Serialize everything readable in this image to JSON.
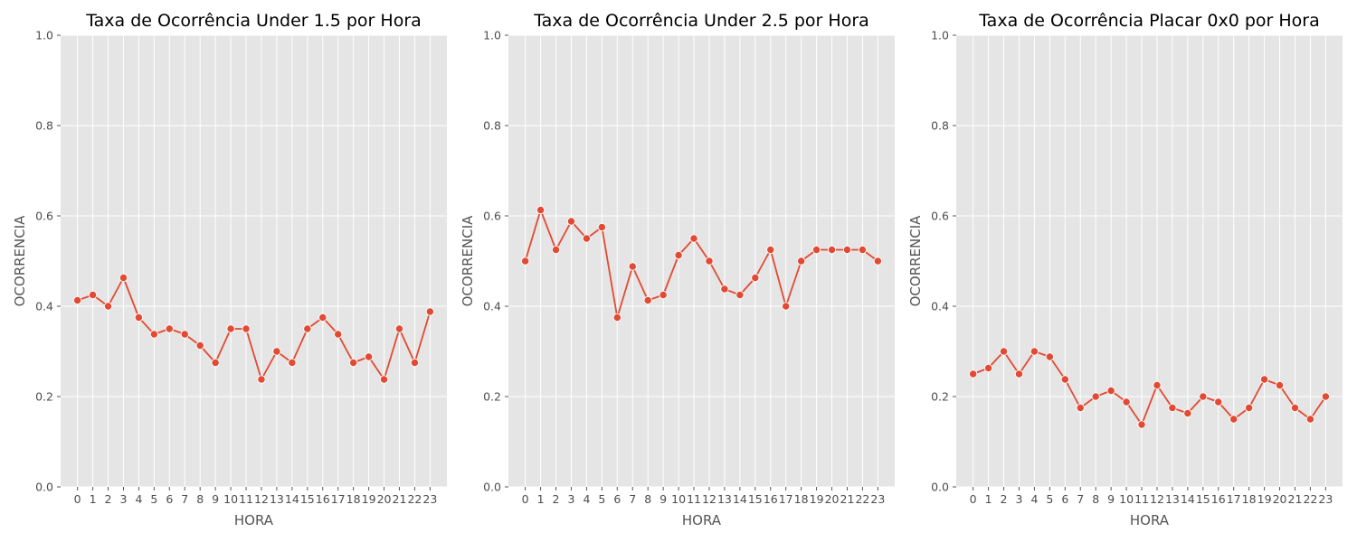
{
  "chart_data": [
    {
      "type": "line",
      "title": "Taxa de Ocorrência Under 1.5 por Hora",
      "xlabel": "HORA",
      "ylabel": "OCORRENCIA",
      "ylim": [
        0,
        1
      ],
      "yticks": [
        "0.0",
        "0.2",
        "0.4",
        "0.6",
        "0.8",
        "1.0"
      ],
      "grid": true,
      "categories": [
        "0",
        "1",
        "2",
        "3",
        "4",
        "5",
        "6",
        "7",
        "8",
        "9",
        "10",
        "11",
        "12",
        "13",
        "14",
        "15",
        "16",
        "17",
        "18",
        "19",
        "20",
        "21",
        "22",
        "23"
      ],
      "series": [
        {
          "values": [
            0.413,
            0.425,
            0.4,
            0.463,
            0.375,
            0.338,
            0.35,
            0.338,
            0.313,
            0.275,
            0.35,
            0.35,
            0.238,
            0.3,
            0.275,
            0.35,
            0.375,
            0.338,
            0.275,
            0.288,
            0.238,
            0.35,
            0.275,
            0.388
          ]
        }
      ]
    },
    {
      "type": "line",
      "title": "Taxa de Ocorrência Under 2.5 por Hora",
      "xlabel": "HORA",
      "ylabel": "OCORRENCIA",
      "ylim": [
        0,
        1
      ],
      "yticks": [
        "0.0",
        "0.2",
        "0.4",
        "0.6",
        "0.8",
        "1.0"
      ],
      "grid": true,
      "categories": [
        "0",
        "1",
        "2",
        "3",
        "4",
        "5",
        "6",
        "7",
        "8",
        "9",
        "10",
        "11",
        "12",
        "13",
        "14",
        "15",
        "16",
        "17",
        "18",
        "19",
        "20",
        "21",
        "22",
        "23"
      ],
      "series": [
        {
          "values": [
            0.5,
            0.613,
            0.525,
            0.588,
            0.55,
            0.575,
            0.375,
            0.488,
            0.413,
            0.425,
            0.513,
            0.55,
            0.5,
            0.438,
            0.425,
            0.463,
            0.525,
            0.4,
            0.5,
            0.525,
            0.525,
            0.525,
            0.525,
            0.5
          ]
        }
      ]
    },
    {
      "type": "line",
      "title": "Taxa de Ocorrência Placar 0x0 por Hora",
      "xlabel": "HORA",
      "ylabel": "OCORRENCIA",
      "ylim": [
        0,
        1
      ],
      "yticks": [
        "0.0",
        "0.2",
        "0.4",
        "0.6",
        "0.8",
        "1.0"
      ],
      "grid": true,
      "categories": [
        "0",
        "1",
        "2",
        "3",
        "4",
        "5",
        "6",
        "7",
        "8",
        "9",
        "10",
        "11",
        "12",
        "13",
        "14",
        "15",
        "16",
        "17",
        "18",
        "19",
        "20",
        "21",
        "22",
        "23"
      ],
      "series": [
        {
          "values": [
            0.25,
            0.263,
            0.3,
            0.25,
            0.3,
            0.288,
            0.238,
            0.175,
            0.2,
            0.213,
            0.188,
            0.138,
            0.225,
            0.175,
            0.163,
            0.2,
            0.188,
            0.15,
            0.175,
            0.238,
            0.225,
            0.175,
            0.15,
            0.2
          ]
        }
      ]
    }
  ],
  "colors": {
    "line": "#e24a33",
    "panel_background": "#e5e5e5",
    "grid": "#ffffff"
  }
}
